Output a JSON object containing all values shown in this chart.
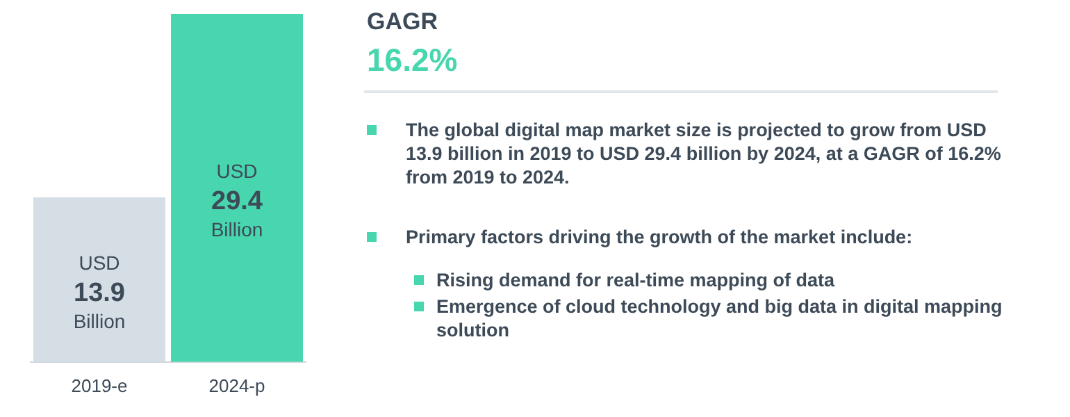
{
  "chart_data": {
    "type": "bar",
    "categories": [
      "2019-e",
      "2024-p"
    ],
    "values": [
      13.9,
      29.4
    ],
    "colors": [
      "#d5dde5",
      "#47d6ad"
    ],
    "value_labels": [
      "USD 13.9 Billion",
      "USD 29.4 Billion"
    ],
    "annotations": [
      "GAGR",
      "16.2%",
      "The global digital map market size is projected to grow from USD 13.9 billion in 2019 to USD 29.4 billion by 2024, at a GAGR of 16.2% from 2019 to 2024.",
      "Primary factors driving the growth of the market include:",
      "Rising demand for real-time mapping of data",
      "Emergence of cloud technology and big data in digital mapping solution"
    ]
  }
}
